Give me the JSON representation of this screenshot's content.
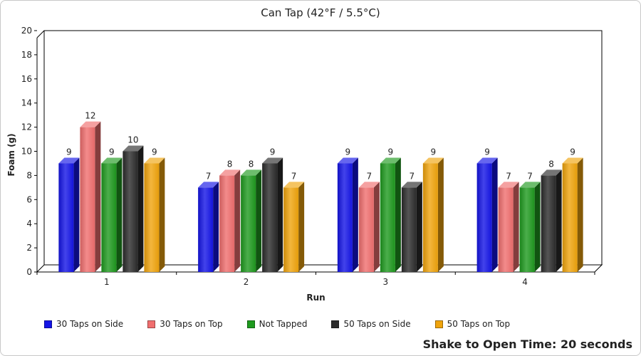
{
  "chart_data": {
    "type": "bar",
    "title": "Can Tap (42°F / 5.5°C)",
    "xlabel": "Run",
    "ylabel": "Foam (g)",
    "ylim": [
      0,
      20
    ],
    "yticks": [
      0,
      2,
      4,
      6,
      8,
      10,
      12,
      14,
      16,
      18,
      20
    ],
    "categories": [
      "1",
      "2",
      "3",
      "4"
    ],
    "series": [
      {
        "name": "30 Taps on Side",
        "color": "#1414e6",
        "values": [
          9,
          7,
          9,
          9
        ]
      },
      {
        "name": "30 Taps on Top",
        "color": "#f06e6e",
        "values": [
          12,
          8,
          7,
          7
        ]
      },
      {
        "name": "Not Tapped",
        "color": "#1e9a1e",
        "values": [
          9,
          8,
          9,
          7
        ]
      },
      {
        "name": "50 Taps on Side",
        "color": "#2b2b2b",
        "values": [
          10,
          9,
          7,
          8
        ]
      },
      {
        "name": "50 Taps on Top",
        "color": "#f0a40c",
        "values": [
          9,
          7,
          9,
          9
        ]
      }
    ],
    "grid": false,
    "legend": "bottom",
    "three_d": true
  },
  "footnote": "Shake to Open Time: 20 seconds"
}
